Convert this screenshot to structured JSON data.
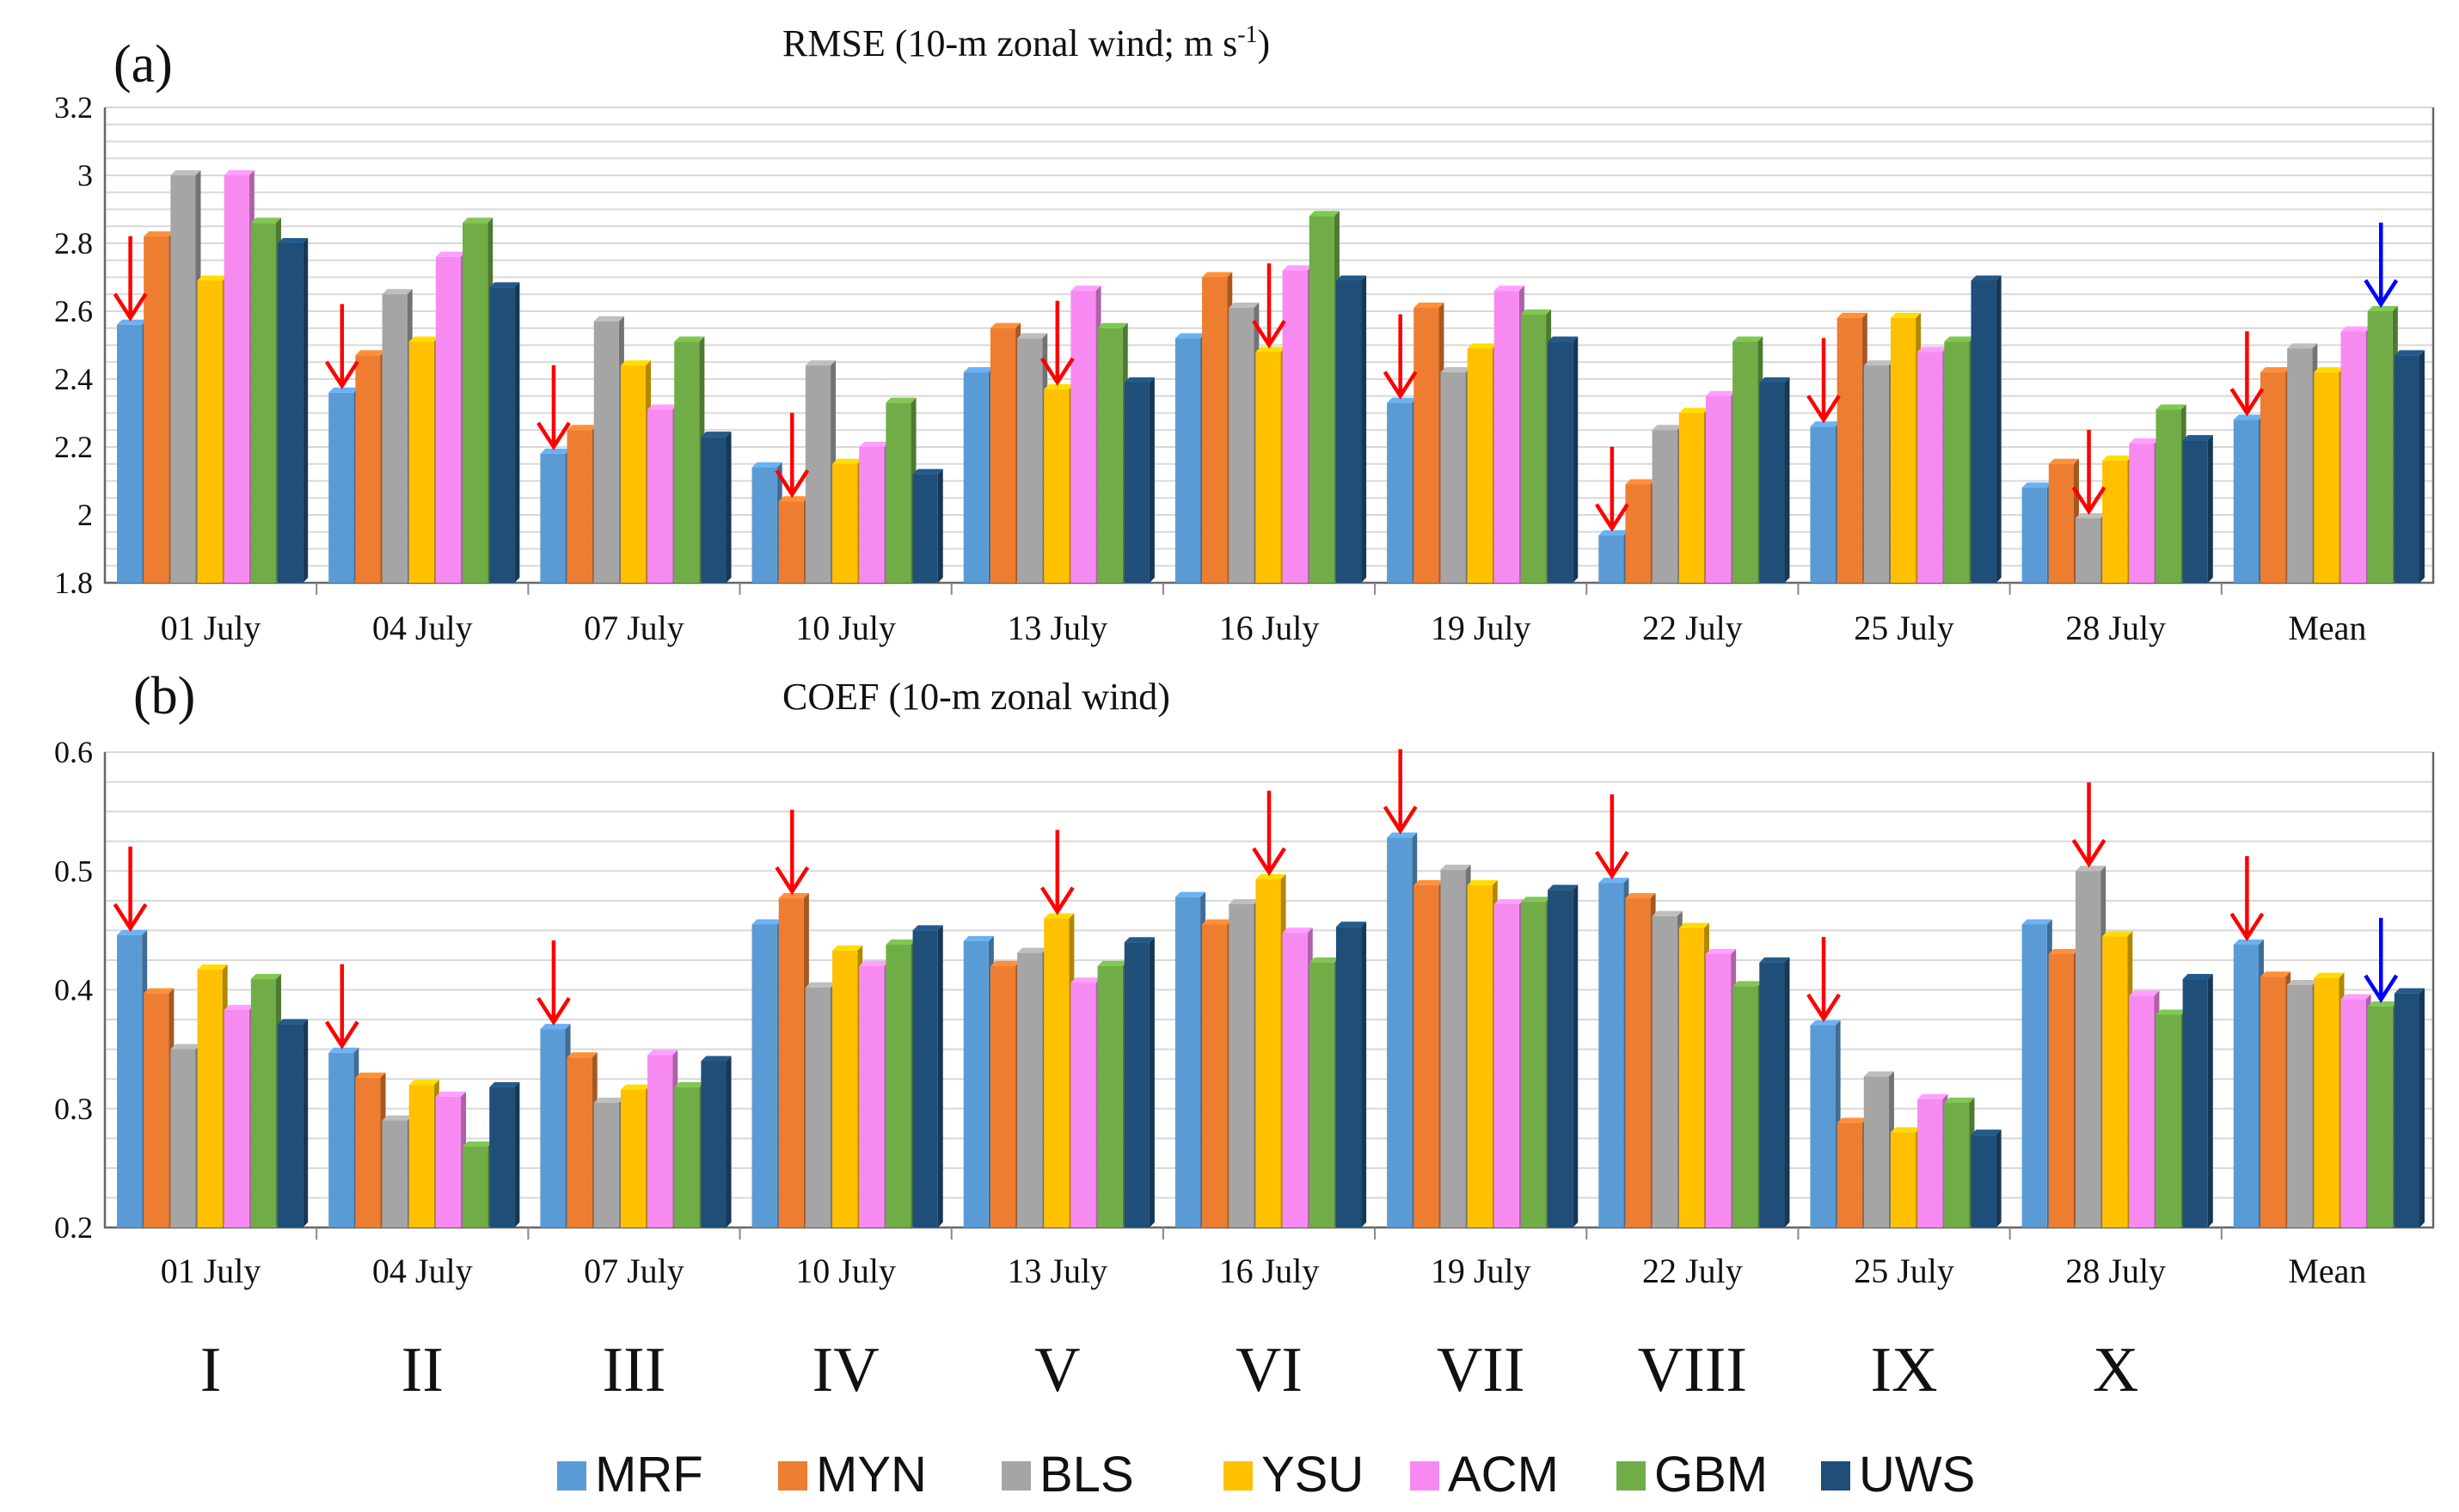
{
  "colors": {
    "MRF": "#5b9bd5",
    "MYN": "#ed7d31",
    "BLS": "#a5a5a5",
    "YSU": "#ffc000",
    "ACM": "#f78af0",
    "GBM": "#70ad47",
    "UWS": "#1f4e79",
    "red_arrow": "#ff0000",
    "blue_arrow": "#0000ff"
  },
  "legend": [
    "MRF",
    "MYN",
    "BLS",
    "YSU",
    "ACM",
    "GBM",
    "UWS"
  ],
  "roman_numerals": [
    "I",
    "II",
    "III",
    "IV",
    "V",
    "VI",
    "VII",
    "VIII",
    "IX",
    "X"
  ],
  "chart_data": [
    {
      "panel": "(a)",
      "type": "bar",
      "title": "RMSE (10-m zonal wind; m s",
      "title_sup": "-1",
      "title_end": ")",
      "categories": [
        "01 July",
        "04 July",
        "07 July",
        "10 July",
        "13 July",
        "16 July",
        "19 July",
        "22 July",
        "25 July",
        "28 July",
        "Mean"
      ],
      "ylim": [
        1.8,
        3.2
      ],
      "yticks": [
        1.8,
        2,
        2.2,
        2.4,
        2.6,
        2.8,
        3,
        3.2
      ],
      "ytick_labels": [
        "1.8",
        "2",
        "2.2",
        "2.4",
        "2.6",
        "2.8",
        "3",
        "3.2"
      ],
      "series": [
        {
          "name": "MRF",
          "values": [
            2.56,
            2.36,
            2.18,
            2.14,
            2.42,
            2.52,
            2.33,
            1.94,
            2.26,
            2.08,
            2.28
          ]
        },
        {
          "name": "MYN",
          "values": [
            2.82,
            2.47,
            2.25,
            2.04,
            2.55,
            2.7,
            2.61,
            2.09,
            2.58,
            2.15,
            2.42
          ]
        },
        {
          "name": "BLS",
          "values": [
            3.0,
            2.65,
            2.57,
            2.44,
            2.52,
            2.61,
            2.42,
            2.25,
            2.44,
            1.99,
            2.49
          ]
        },
        {
          "name": "YSU",
          "values": [
            2.69,
            2.51,
            2.44,
            2.15,
            2.37,
            2.48,
            2.49,
            2.3,
            2.58,
            2.16,
            2.42
          ]
        },
        {
          "name": "ACM",
          "values": [
            3.0,
            2.76,
            2.31,
            2.2,
            2.66,
            2.72,
            2.66,
            2.35,
            2.48,
            2.21,
            2.54
          ]
        },
        {
          "name": "GBM",
          "values": [
            2.86,
            2.86,
            2.51,
            2.33,
            2.55,
            2.88,
            2.59,
            2.51,
            2.51,
            2.31,
            2.6
          ]
        },
        {
          "name": "UWS",
          "values": [
            2.8,
            2.67,
            2.23,
            2.12,
            2.39,
            2.69,
            2.51,
            2.39,
            2.69,
            2.22,
            2.47
          ]
        }
      ],
      "red_arrows": [
        0,
        0,
        0,
        1,
        3,
        3,
        0,
        0,
        0,
        2,
        0
      ],
      "blue_arrow": {
        "category": 10,
        "series": 5
      }
    },
    {
      "panel": "(b)",
      "type": "bar",
      "title": "COEF (10-m zonal wind)",
      "title_sup": "",
      "title_end": "",
      "categories": [
        "01 July",
        "04 July",
        "07 July",
        "10 July",
        "13 July",
        "16 July",
        "19 July",
        "22 July",
        "25 July",
        "28 July",
        "Mean"
      ],
      "ylim": [
        0.2,
        0.6
      ],
      "yticks": [
        0.2,
        0.3,
        0.4,
        0.5,
        0.6
      ],
      "ytick_labels": [
        "0.2",
        "0.3",
        "0.4",
        "0.5",
        "0.6"
      ],
      "series": [
        {
          "name": "MRF",
          "values": [
            0.446,
            0.347,
            0.367,
            0.455,
            0.441,
            0.478,
            0.528,
            0.49,
            0.37,
            0.455,
            0.438
          ]
        },
        {
          "name": "MYN",
          "values": [
            0.397,
            0.326,
            0.343,
            0.477,
            0.42,
            0.455,
            0.488,
            0.477,
            0.288,
            0.43,
            0.411
          ]
        },
        {
          "name": "BLS",
          "values": [
            0.35,
            0.29,
            0.305,
            0.402,
            0.431,
            0.472,
            0.501,
            0.462,
            0.327,
            0.5,
            0.404
          ]
        },
        {
          "name": "YSU",
          "values": [
            0.417,
            0.32,
            0.316,
            0.433,
            0.46,
            0.493,
            0.488,
            0.452,
            0.28,
            0.445,
            0.41
          ]
        },
        {
          "name": "ACM",
          "values": [
            0.383,
            0.31,
            0.345,
            0.42,
            0.406,
            0.448,
            0.472,
            0.43,
            0.308,
            0.395,
            0.392
          ]
        },
        {
          "name": "GBM",
          "values": [
            0.409,
            0.268,
            0.318,
            0.438,
            0.42,
            0.423,
            0.474,
            0.403,
            0.305,
            0.379,
            0.386
          ]
        },
        {
          "name": "UWS",
          "values": [
            0.371,
            0.318,
            0.34,
            0.45,
            0.44,
            0.453,
            0.484,
            0.423,
            0.278,
            0.409,
            0.397
          ]
        }
      ],
      "red_arrows": [
        0,
        0,
        0,
        1,
        3,
        3,
        0,
        0,
        0,
        2,
        0
      ],
      "blue_arrow": {
        "category": 10,
        "series": 5
      }
    }
  ]
}
